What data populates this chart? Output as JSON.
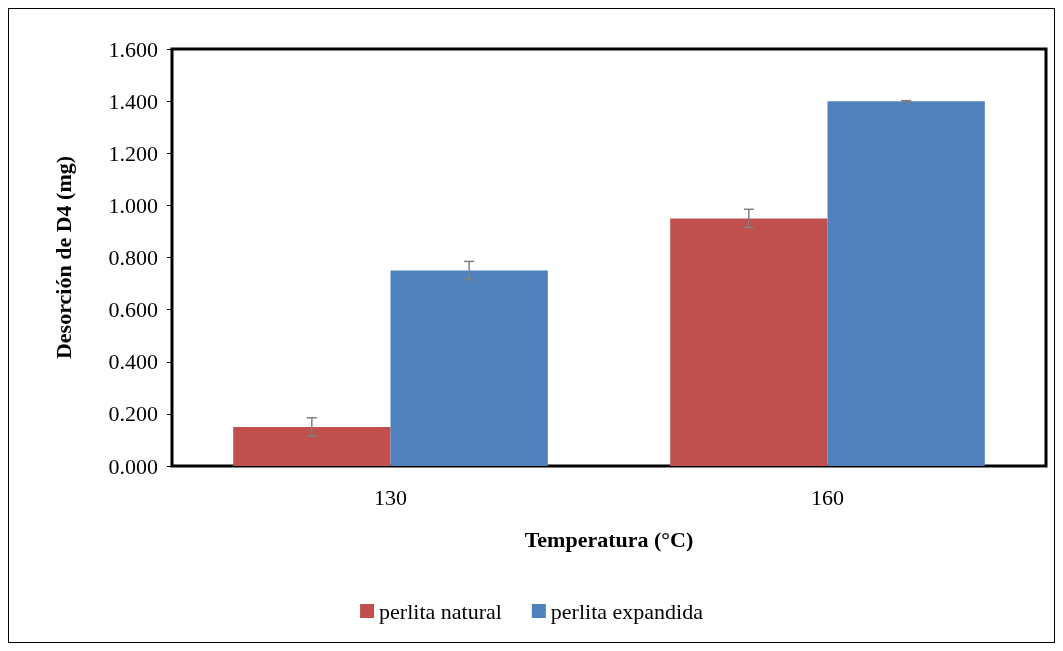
{
  "chart_data": {
    "type": "bar",
    "xlabel": "Temperatura (°C)",
    "ylabel": "Desorción de D4 (mg)",
    "categories": [
      "130",
      "160"
    ],
    "series": [
      {
        "name": "perlita natural",
        "color": "#c0504d",
        "values": [
          0.15,
          0.95
        ],
        "errors": [
          0.035,
          0.035
        ]
      },
      {
        "name": "perlita expandida",
        "color": "#4f81bd",
        "values": [
          0.75,
          1.4
        ],
        "errors": [
          0.035,
          0.002
        ]
      }
    ],
    "ylim": [
      0,
      1.6
    ],
    "yticks": [
      {
        "value": 0,
        "label": "0.000"
      },
      {
        "value": 0.2,
        "label": "0.200"
      },
      {
        "value": 0.4,
        "label": "0.400"
      },
      {
        "value": 0.6,
        "label": "0.600"
      },
      {
        "value": 0.8,
        "label": "0.800"
      },
      {
        "value": 1,
        "label": "1.000"
      },
      {
        "value": 1.2,
        "label": "1.200"
      },
      {
        "value": 1.4,
        "label": "1.400"
      },
      {
        "value": 1.6,
        "label": "1.600"
      }
    ],
    "grid": false,
    "legend": "bottom"
  }
}
